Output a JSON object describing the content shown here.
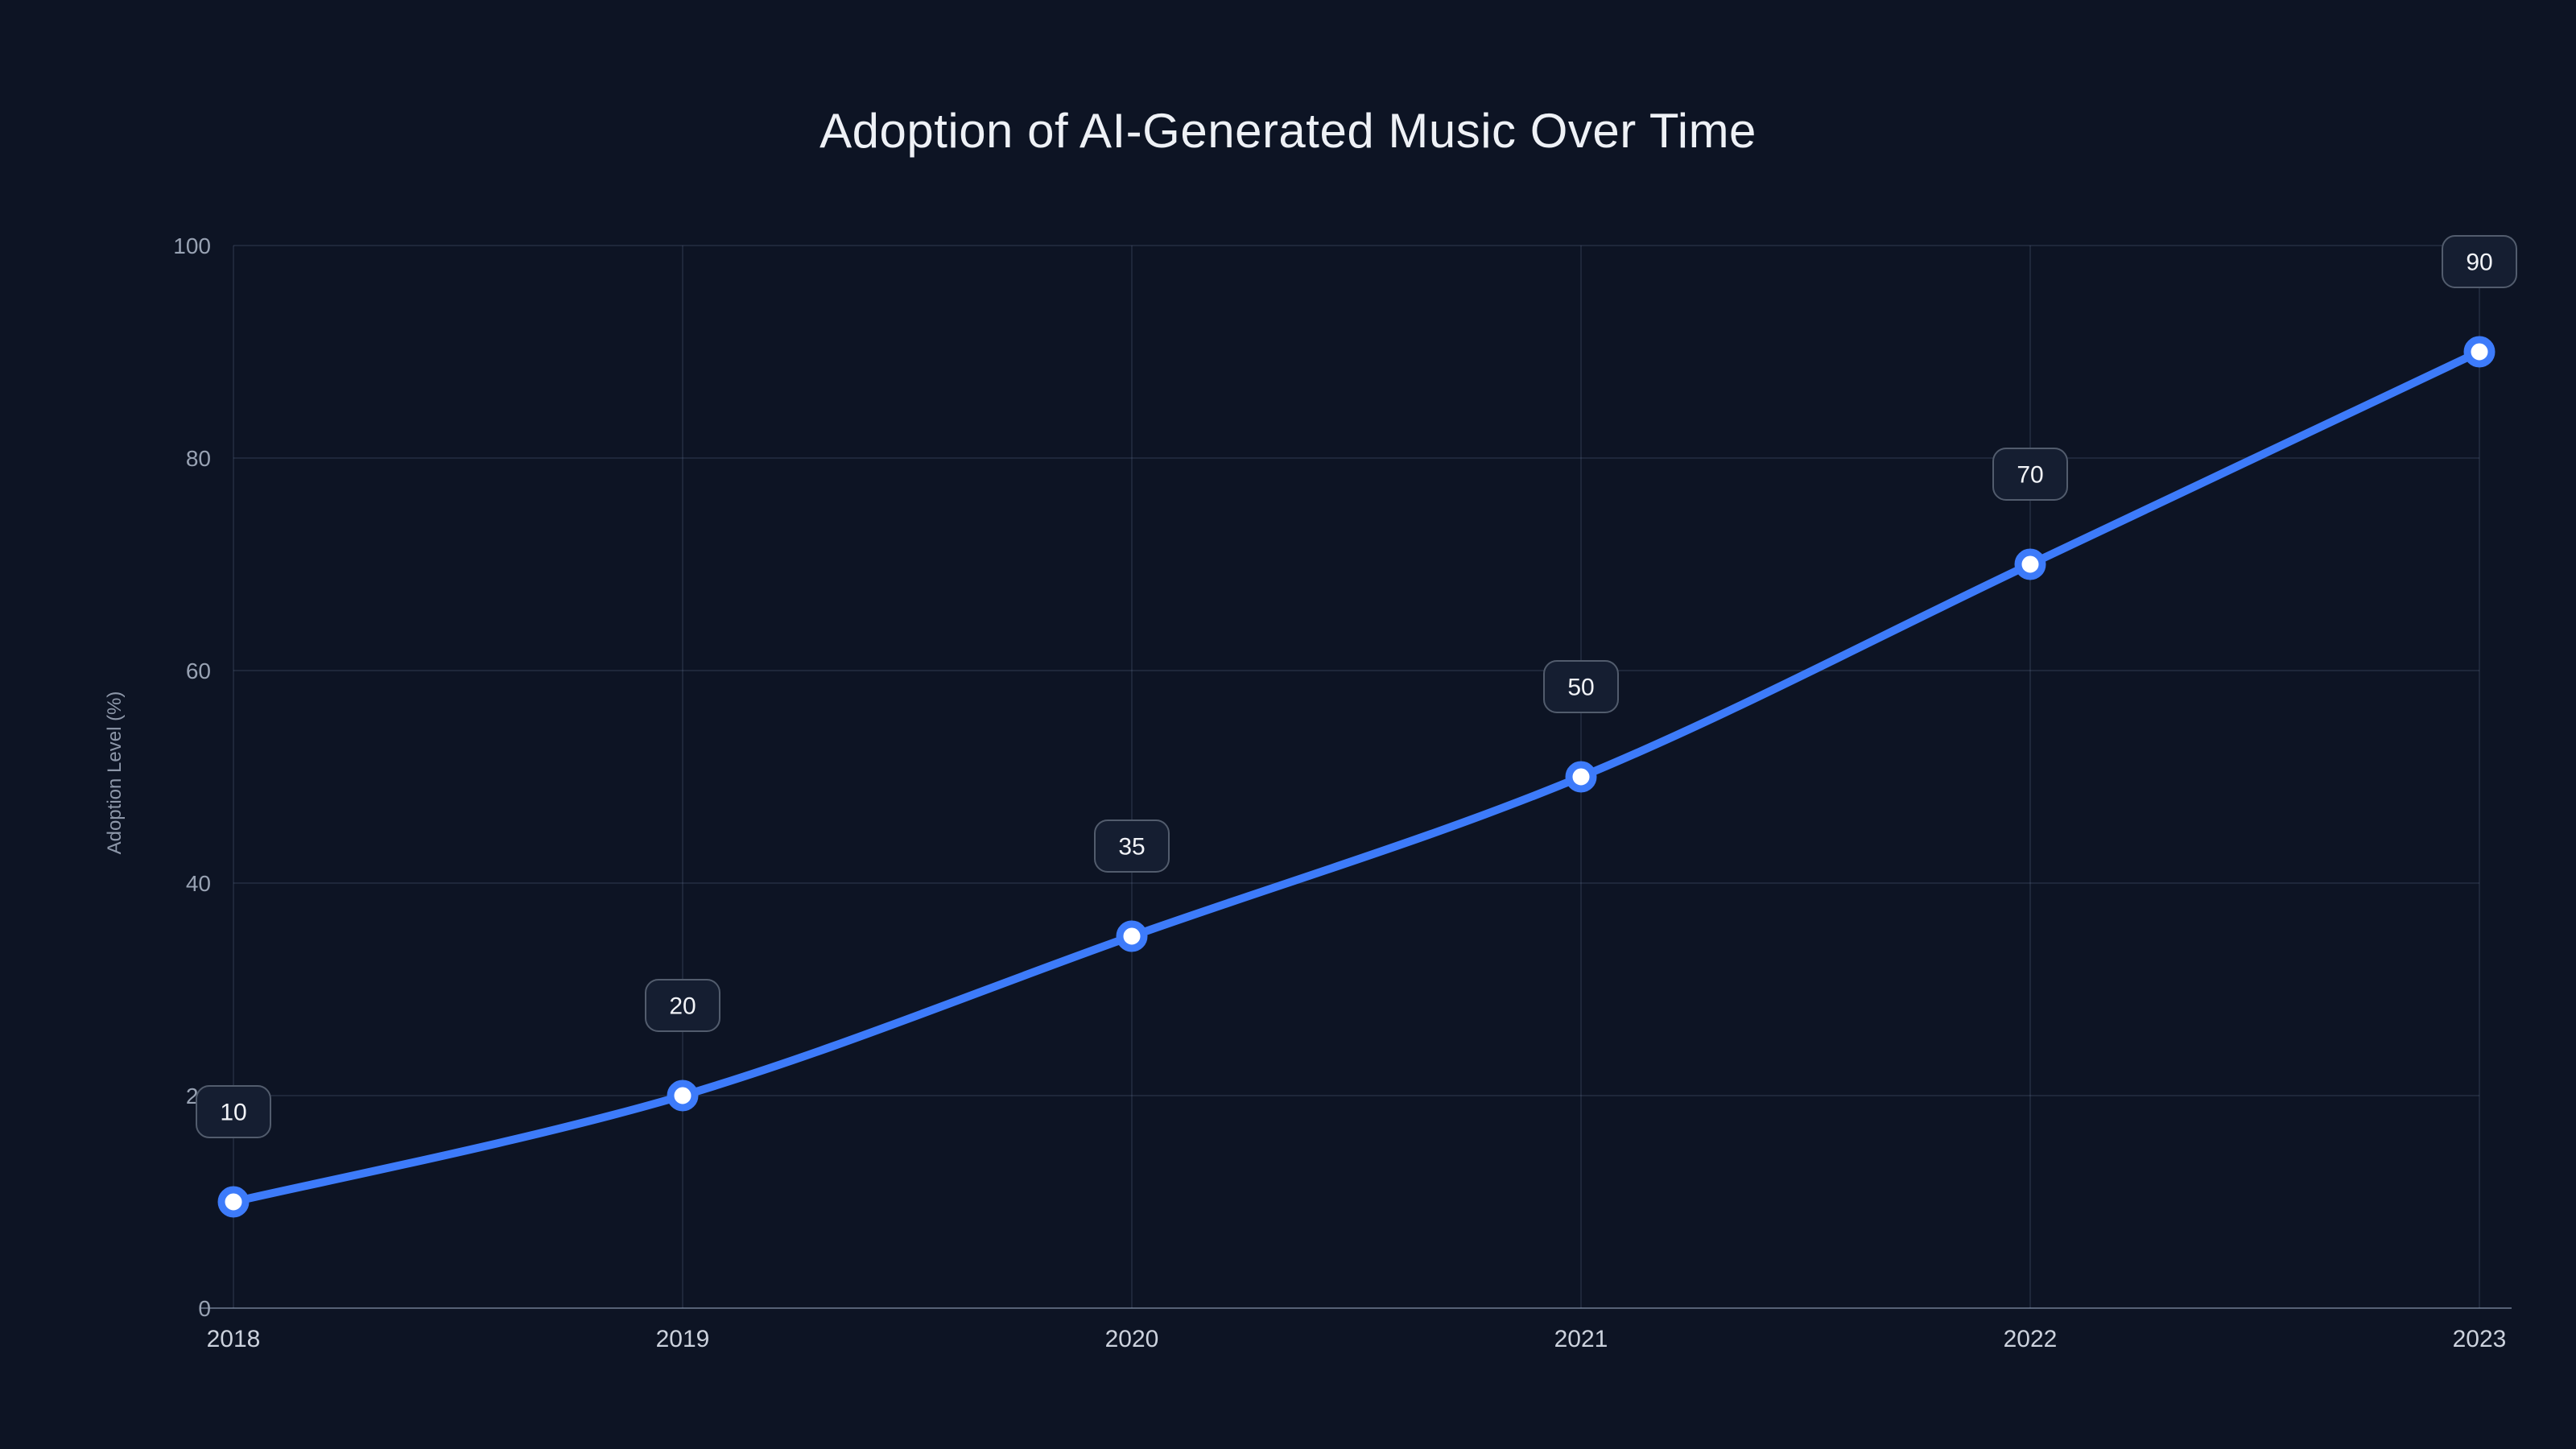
{
  "page": {
    "background_color": "#0d1424"
  },
  "chart_data": {
    "type": "line",
    "title": "Adoption of AI-Generated Music Over Time",
    "xlabel": "",
    "ylabel": "Adoption Level (%)",
    "categories": [
      "2018",
      "2019",
      "2020",
      "2021",
      "2022",
      "2023"
    ],
    "series": [
      {
        "name": "Adoption Level (%)",
        "values": [
          10,
          20,
          35,
          50,
          70,
          90
        ]
      }
    ],
    "ylim": [
      0,
      100
    ],
    "yticks": [
      0,
      20,
      40,
      60,
      80,
      100
    ],
    "grid": true,
    "legend": "none",
    "smooth": true,
    "point_labels": [
      "10",
      "20",
      "35",
      "50",
      "70",
      "90"
    ],
    "colors": {
      "line": "#3d7bfa",
      "marker_fill": "#ffffff",
      "marker_ring": "#3d7bfa",
      "badge_bg": "#151e31",
      "badge_border": "#525c6d",
      "badge_text": "#f2f4f8",
      "grid_line": "rgba(125,145,175,0.16)",
      "axis_line": "rgba(160,175,200,0.5)",
      "y_tick_text": "#98a2b3",
      "x_tick_text": "#ccd2dd"
    }
  }
}
